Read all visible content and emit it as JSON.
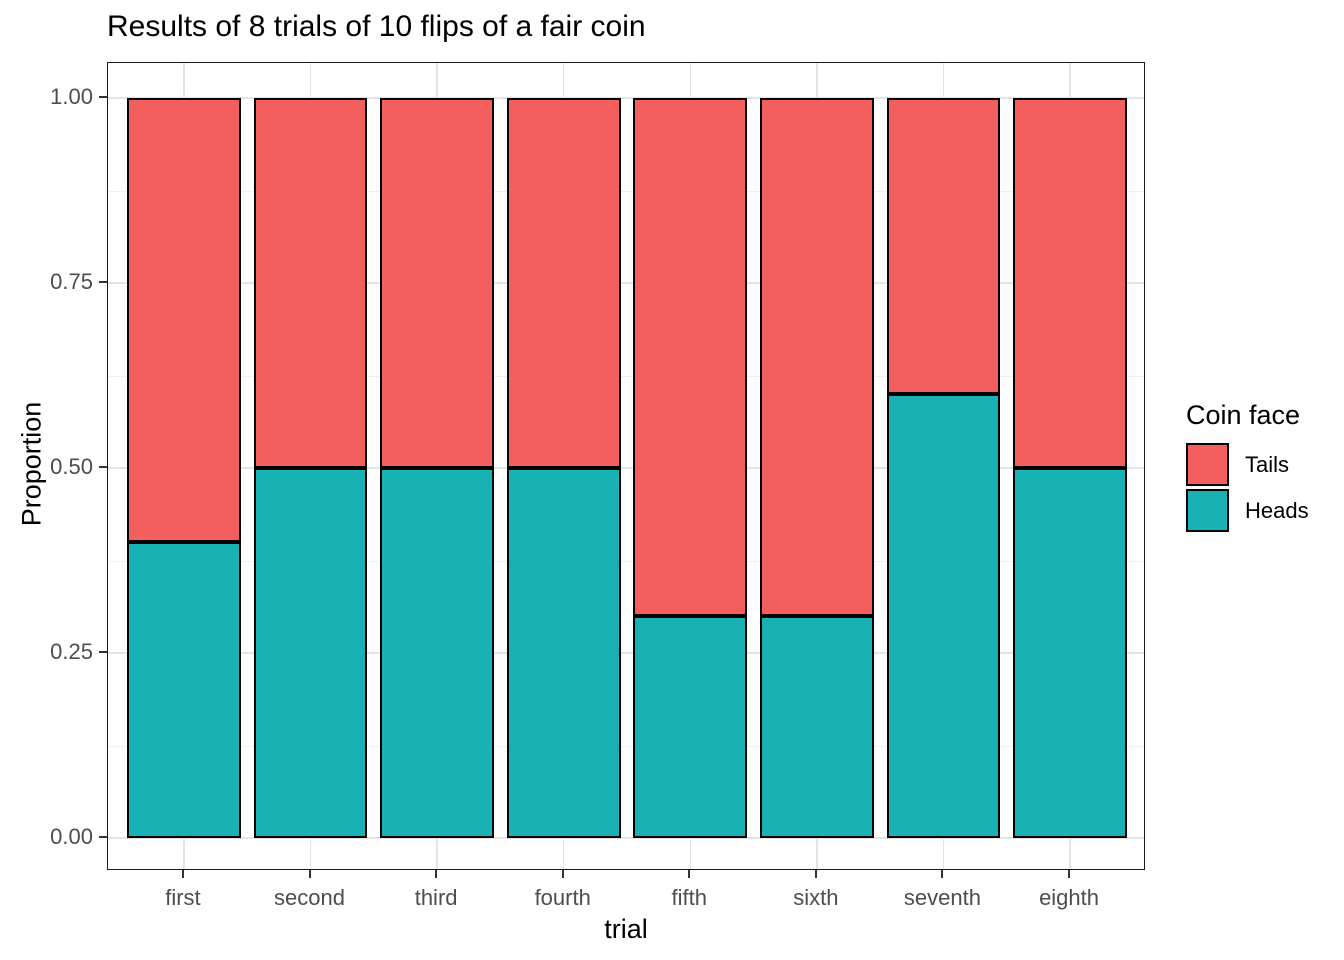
{
  "chart_data": {
    "type": "bar",
    "stacked": true,
    "title": "Results of 8 trials of 10 flips of a fair coin",
    "xlabel": "trial",
    "ylabel": "Proportion",
    "categories": [
      "first",
      "second",
      "third",
      "fourth",
      "fifth",
      "sixth",
      "seventh",
      "eighth"
    ],
    "series": [
      {
        "name": "Heads",
        "color": "#19B2B4",
        "values": [
          0.4,
          0.5,
          0.5,
          0.5,
          0.3,
          0.3,
          0.6,
          0.5
        ]
      },
      {
        "name": "Tails",
        "color": "#F25F5C",
        "values": [
          0.6,
          0.5,
          0.5,
          0.5,
          0.7,
          0.7,
          0.4,
          0.5
        ]
      }
    ],
    "ylim": [
      0,
      1
    ],
    "yticks": [
      0,
      0.25,
      0.5,
      0.75,
      1
    ],
    "ytick_labels": [
      "0.00",
      "0.25",
      "0.50",
      "0.75",
      "1.00"
    ],
    "minor_yticks": [
      0.125,
      0.375,
      0.625,
      0.875
    ],
    "bar_width_fraction": 0.9,
    "bar_outline_color": "#000000",
    "grid": true,
    "legend": {
      "title": "Coin face",
      "position": "right",
      "entries": [
        {
          "label": "Tails",
          "color": "#F25F5C"
        },
        {
          "label": "Heads",
          "color": "#19B2B4"
        }
      ]
    }
  }
}
